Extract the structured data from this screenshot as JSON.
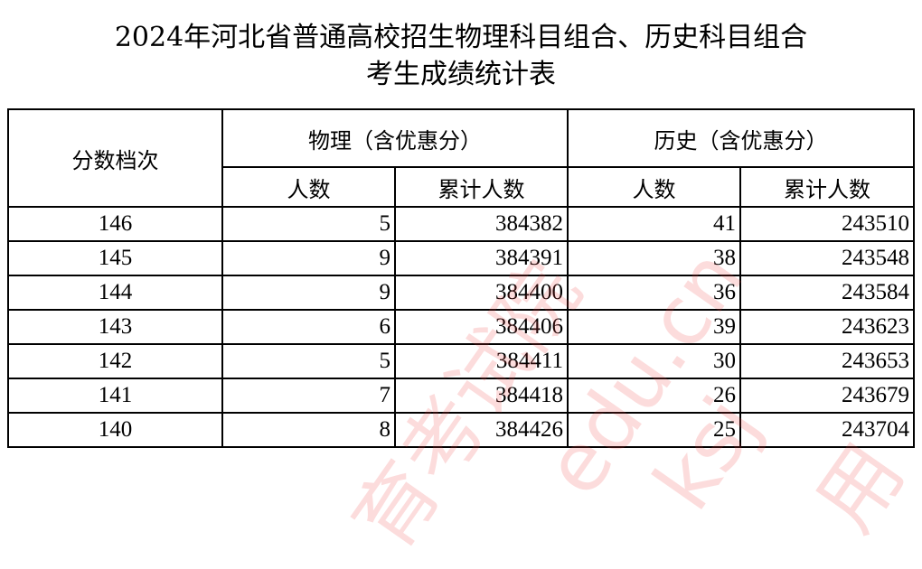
{
  "title_line1": "2024年河北省普通高校招生物理科目组合、历史科目组合",
  "title_line2": "考生成绩统计表",
  "header": {
    "score_level": "分数档次",
    "physics": "物理（含优惠分）",
    "history": "历史（含优惠分）",
    "count": "人数",
    "cumulative": "累计人数"
  },
  "rows": [
    {
      "score": "146",
      "phy_count": "5",
      "phy_cum": "384382",
      "his_count": "41",
      "his_cum": "243510"
    },
    {
      "score": "145",
      "phy_count": "9",
      "phy_cum": "384391",
      "his_count": "38",
      "his_cum": "243548"
    },
    {
      "score": "144",
      "phy_count": "9",
      "phy_cum": "384400",
      "his_count": "36",
      "his_cum": "243584"
    },
    {
      "score": "143",
      "phy_count": "6",
      "phy_cum": "384406",
      "his_count": "39",
      "his_cum": "243623"
    },
    {
      "score": "142",
      "phy_count": "5",
      "phy_cum": "384411",
      "his_count": "30",
      "his_cum": "243653"
    },
    {
      "score": "141",
      "phy_count": "7",
      "phy_cum": "384418",
      "his_count": "26",
      "his_cum": "243679"
    },
    {
      "score": "140",
      "phy_count": "8",
      "phy_cum": "384426",
      "his_count": "25",
      "his_cum": "243704"
    }
  ],
  "watermark": [
    "育考试院",
    "edu.cn",
    "ksj",
    "用"
  ],
  "watermark_color": "#f03c3c"
}
